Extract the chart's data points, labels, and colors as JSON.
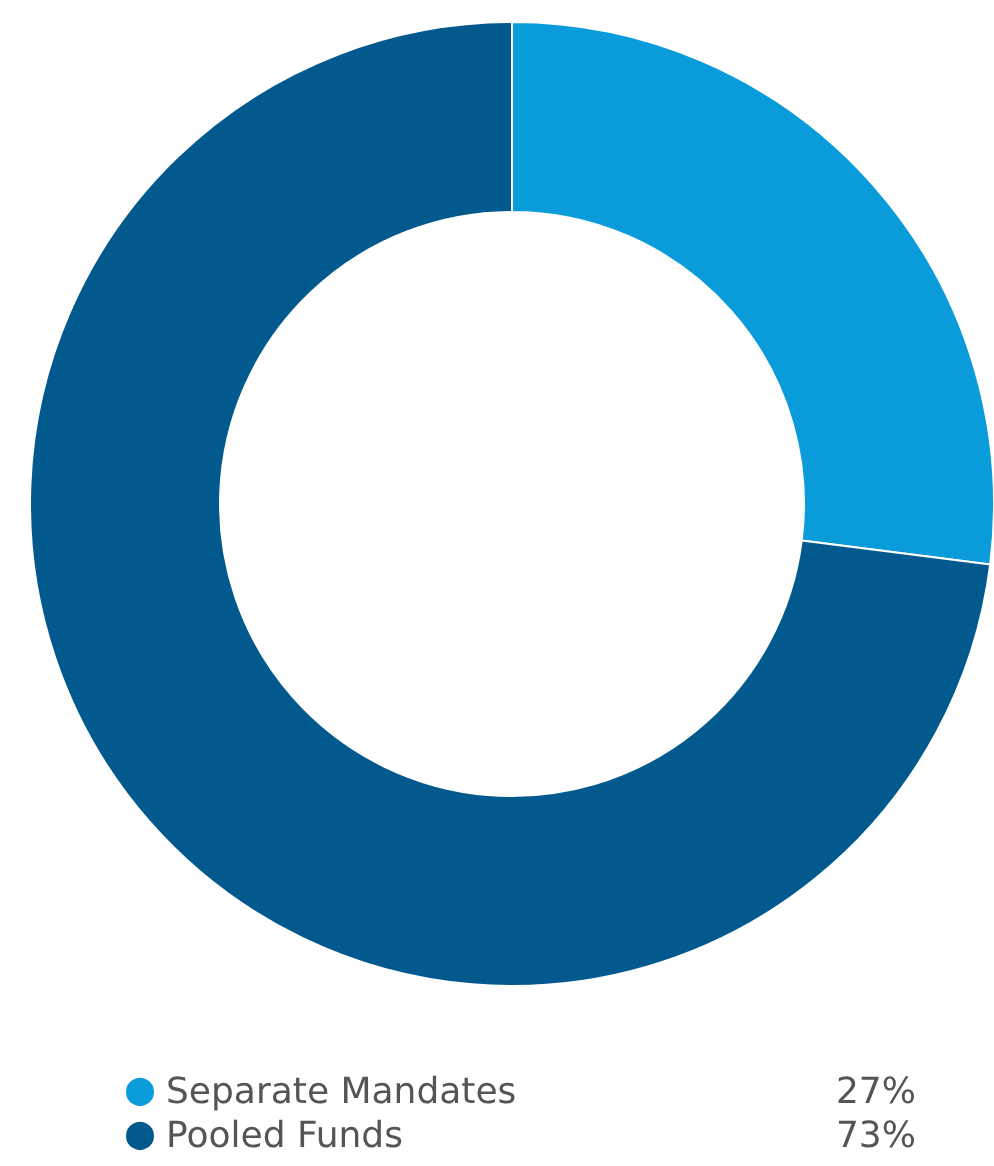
{
  "chart_data": {
    "type": "donut",
    "categories": [
      "Separate Mandates",
      "Pooled Funds"
    ],
    "values": [
      27,
      73
    ],
    "colors": [
      "#0a9bdb",
      "#02598d"
    ],
    "value_labels": [
      "27%",
      "73%"
    ],
    "legend": "bottom"
  }
}
